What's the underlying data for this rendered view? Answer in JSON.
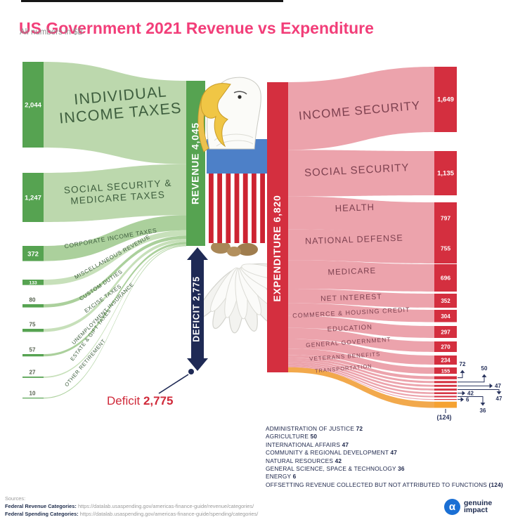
{
  "chart_data": {
    "type": "sankey",
    "title": "US Government 2021 Revenue vs Expenditure",
    "subtitle": "All numbers in $B",
    "unit": "$B",
    "revenue_node": {
      "display": "REVENUE 4,045",
      "label": "REVENUE",
      "value": 4045
    },
    "expenditure_node": {
      "display": "EXPENDITURE 6,820",
      "label": "EXPENDITURE",
      "value": 6820
    },
    "deficit": {
      "display": "DEFICIT 2,775",
      "label": "DEFICIT",
      "value": 2775,
      "callout_regular": "Deficit",
      "callout_bold": "2,775"
    },
    "revenue_sources": [
      {
        "label": "INDIVIDUAL INCOME TAXES",
        "value": 2044,
        "display": "2,044"
      },
      {
        "label": "SOCIAL SECURITY & MEDICARE TAXES",
        "value": 1247,
        "display": "1,247"
      },
      {
        "label": "CORPORATE INCOME TAXES",
        "value": 372,
        "display": "372"
      },
      {
        "label": "MISCELLANEOUS REVENUE",
        "value": 133,
        "display": "133"
      },
      {
        "label": "CUSTOM DUTIES",
        "value": 80,
        "display": "80"
      },
      {
        "label": "EXCISE TAXES",
        "value": 75,
        "display": "75"
      },
      {
        "label": "UNEMPLOYMENT INSURANCE",
        "value": 57,
        "display": "57"
      },
      {
        "label": "ESTATE & GIFT TAXES",
        "value": 27,
        "display": "27"
      },
      {
        "label": "OTHER RETIREMENT",
        "value": 10,
        "display": "10"
      }
    ],
    "expenditures": [
      {
        "label": "INCOME SECURITY",
        "value": 1649,
        "display": "1,649"
      },
      {
        "label": "SOCIAL SECURITY",
        "value": 1135,
        "display": "1,135"
      },
      {
        "label": "HEALTH",
        "value": 797,
        "display": "797"
      },
      {
        "label": "NATIONAL DEFENSE",
        "value": 755,
        "display": "755"
      },
      {
        "label": "MEDICARE",
        "value": 696,
        "display": "696"
      },
      {
        "label": "NET INTEREST",
        "value": 352,
        "display": "352"
      },
      {
        "label": "COMMERCE & HOUSING CREDIT",
        "value": 304,
        "display": "304"
      },
      {
        "label": "EDUCATION",
        "value": 297,
        "display": "297"
      },
      {
        "label": "GENERAL GOVERNMENT",
        "value": 270,
        "display": "270"
      },
      {
        "label": "VETERANS BENEFITS",
        "value": 234,
        "display": "234"
      },
      {
        "label": "TRANSPORTATION",
        "value": 155,
        "display": "155"
      },
      {
        "label": "ADMINISTRATION OF JUSTICE",
        "value": 72,
        "display": "72"
      },
      {
        "label": "AGRICULTURE",
        "value": 50,
        "display": "50"
      },
      {
        "label": "INTERNATIONAL AFFAIRS",
        "value": 47,
        "display": "47"
      },
      {
        "label": "COMMUNITY & REGIONAL DEVELOPMENT",
        "value": 47,
        "display": "47"
      },
      {
        "label": "NATURAL RESOURCES",
        "value": 42,
        "display": "42"
      },
      {
        "label": "GENERAL SCIENCE, SPACE & TECHNOLOGY",
        "value": 36,
        "display": "36"
      },
      {
        "label": "ENERGY",
        "value": 6,
        "display": "6"
      },
      {
        "label": "OFFSETTING REVENUE COLLECTED BUT NOT ATTRIBUTED TO FUNCTIONS",
        "value": -124,
        "display": "(124)"
      }
    ],
    "colors": {
      "title_pink": "#f23e79",
      "revenue_node": "#56a351",
      "revenue_flow_a": "#bcd8ad",
      "revenue_flow_b": "#abd09c",
      "revenue_flow_c": "#c7e0ba",
      "revenue_label_text": "#3e5e3e",
      "expenditure_node": "#d42f3f",
      "expenditure_flow": "#eca3ac",
      "expenditure_label_text": "#7e4150",
      "deficit_navy": "#1f2a55",
      "offset_orange": "#f5a232",
      "offset_flow_orange": "#f2a94c",
      "callout_red": "#d02a3a",
      "value_dark_green": "#56624f",
      "leader_navy": "#27325c",
      "logo_blue": "#1a6fd4",
      "text_navy": "#20294d"
    }
  },
  "footer": {
    "sources_label": "Sources:",
    "sources": [
      {
        "name": "Federal Revenue Categories:",
        "url": "https://datalab.usaspending.gov/americas-finance-guide/revenue/categories/"
      },
      {
        "name": "Federal Spending Categories:",
        "url": "https://datalab.usaspending.gov/americas-finance-guide/spending/categories/"
      }
    ],
    "logo": {
      "alpha": "α",
      "line1": "genuine",
      "line2": "impact"
    }
  }
}
